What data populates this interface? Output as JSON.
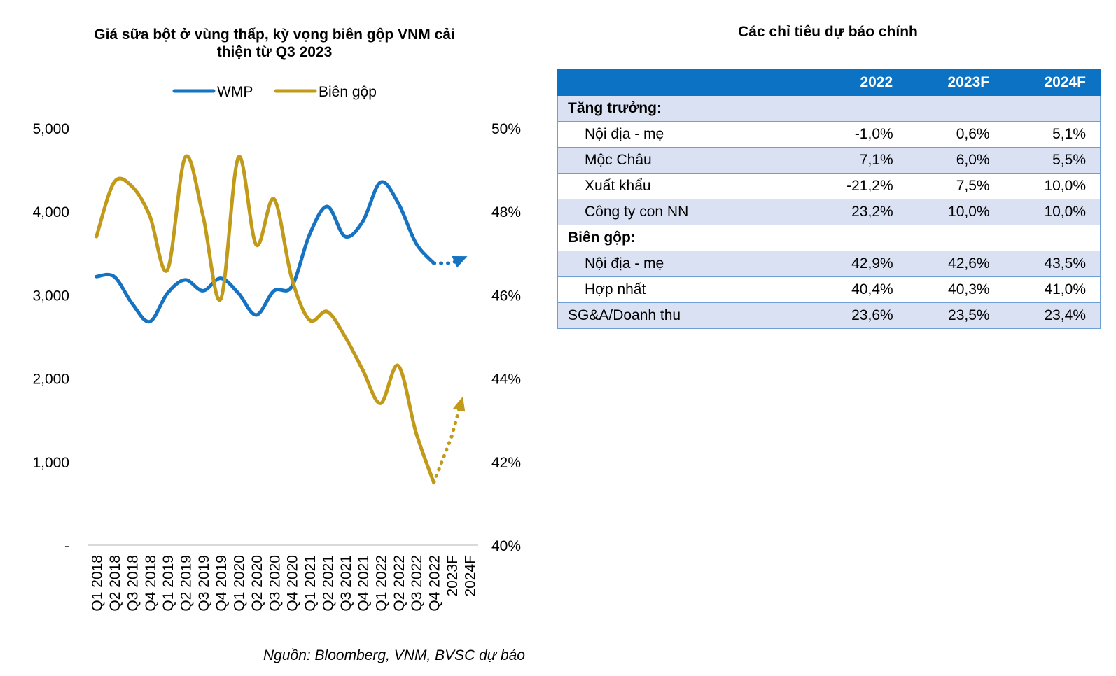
{
  "chart_data": {
    "type": "line",
    "title": "Giá sữa bột ở vùng thấp, kỳ vọng biên gộp VNM cải thiện từ Q3 2023",
    "title_lines": [
      "Giá sữa bột ở vùng thấp, kỳ vọng biên gộp VNM cải",
      "thiện từ Q3 2023"
    ],
    "categories": [
      "Q1 2018",
      "Q2 2018",
      "Q3 2018",
      "Q4 2018",
      "Q1 2019",
      "Q2 2019",
      "Q3 2019",
      "Q4 2019",
      "Q1 2020",
      "Q2 2020",
      "Q3 2020",
      "Q4 2020",
      "Q1 2021",
      "Q2 2021",
      "Q3 2021",
      "Q4 2021",
      "Q1 2022",
      "Q2 2022",
      "Q3 2022",
      "Q4 2022",
      "2023F",
      "2024F"
    ],
    "left_axis": {
      "ylim": [
        0,
        5000
      ],
      "ticks": [
        "-",
        "1,000",
        "2,000",
        "3,000",
        "4,000",
        "5,000"
      ]
    },
    "right_axis": {
      "ylim": [
        40,
        50
      ],
      "ticks": [
        "40%",
        "42%",
        "44%",
        "46%",
        "48%",
        "50%"
      ]
    },
    "series": [
      {
        "name": "WMP",
        "axis": "left",
        "color": "#1673c1",
        "values": [
          3220,
          3220,
          2900,
          2680,
          3020,
          3180,
          3050,
          3200,
          3020,
          2760,
          3050,
          3100,
          3720,
          4060,
          3700,
          3880,
          4350,
          4100,
          3620,
          3380,
          null,
          null
        ],
        "forecast": [
          3380,
          3380,
          3430
        ]
      },
      {
        "name": "Biên gộp",
        "axis": "right",
        "color": "#c19a1a",
        "values": [
          47.4,
          48.7,
          48.6,
          47.9,
          46.6,
          49.3,
          47.9,
          45.9,
          49.3,
          47.2,
          48.3,
          46.4,
          45.4,
          45.6,
          45.0,
          44.2,
          43.4,
          44.3,
          42.7,
          41.5,
          null,
          null
        ],
        "forecast": [
          41.5,
          42.6,
          43.4
        ]
      }
    ],
    "legend": "top-center",
    "source": "Nguồn: Bloomberg, VNM, BVSC dự báo"
  },
  "table": {
    "title": "Các chỉ tiêu dự báo chính",
    "columns": [
      "",
      "2022",
      "2023F",
      "2024F"
    ],
    "rows": [
      {
        "label": "Tăng trưởng:",
        "kind": "section",
        "values": [
          "",
          "",
          ""
        ]
      },
      {
        "label": "Nội địa - mẹ",
        "kind": "item",
        "values": [
          "-1,0%",
          "0,6%",
          "5,1%"
        ]
      },
      {
        "label": "Mộc Châu",
        "kind": "item",
        "values": [
          "7,1%",
          "6,0%",
          "5,5%"
        ]
      },
      {
        "label": "Xuất khẩu",
        "kind": "item",
        "values": [
          "-21,2%",
          "7,5%",
          "10,0%"
        ]
      },
      {
        "label": "Công ty con NN",
        "kind": "item",
        "values": [
          "23,2%",
          "10,0%",
          "10,0%"
        ]
      },
      {
        "label": "Biên gộp:",
        "kind": "section",
        "values": [
          "",
          "",
          ""
        ]
      },
      {
        "label": "Nội địa - mẹ",
        "kind": "item",
        "values": [
          "42,9%",
          "42,6%",
          "43,5%"
        ]
      },
      {
        "label": "Hợp nhất",
        "kind": "item",
        "values": [
          "40,4%",
          "40,3%",
          "41,0%"
        ]
      },
      {
        "label": "SG&A/Doanh thu",
        "kind": "top",
        "values": [
          "23,6%",
          "23,5%",
          "23,4%"
        ]
      }
    ]
  }
}
